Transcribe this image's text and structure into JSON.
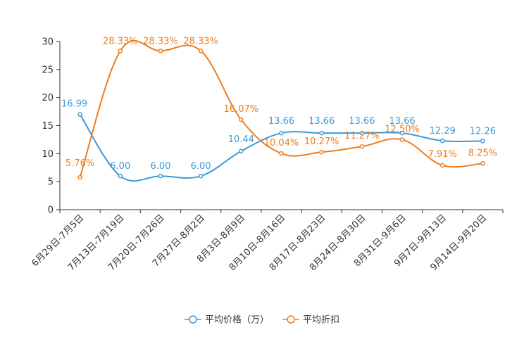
{
  "chart_data": {
    "type": "line",
    "title": "",
    "xlabel": "",
    "ylabel": "",
    "ylim": [
      0,
      30
    ],
    "yticks": [
      0,
      5,
      10,
      15,
      20,
      25,
      30
    ],
    "grid": false,
    "legend_position": "bottom-center",
    "categories": [
      "6月29日-7月5日",
      "7月13日-7月19日",
      "7月20日-7月26日",
      "7月27日-8月2日",
      "8月3日-8月9日",
      "8月10日-8月16日",
      "8月17日-8月23日",
      "8月24日-8月30日",
      "8月31日-9月6日",
      "9月7日-9月13日",
      "9月14日-9月20日"
    ],
    "series": [
      {
        "name": "平均价格（万）",
        "color": "#3a9bd5",
        "values": [
          16.99,
          6.0,
          6.0,
          6.0,
          10.44,
          13.66,
          13.66,
          13.66,
          13.66,
          12.29,
          12.26
        ],
        "labels": [
          "16.99",
          "6.00",
          "6.00",
          "6.00",
          "10.44",
          "13.66",
          "13.66",
          "13.66",
          "13.66",
          "12.29",
          "12.26"
        ]
      },
      {
        "name": "平均折扣",
        "color": "#f07d1a",
        "values": [
          5.76,
          28.33,
          28.33,
          28.33,
          16.07,
          10.04,
          10.27,
          11.27,
          12.5,
          7.91,
          8.25
        ],
        "labels": [
          "5.76%",
          "28.33%",
          "28.33%",
          "28.33%",
          "16.07%",
          "10.04%",
          "10.27%",
          "11.27%",
          "12.50%",
          "7.91%",
          "8.25%"
        ]
      }
    ]
  }
}
